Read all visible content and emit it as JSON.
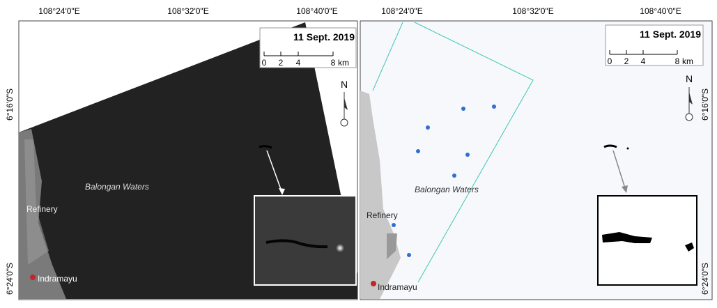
{
  "panels": [
    {
      "lon_labels": [
        "108°24'0\"E",
        "108°32'0\"E",
        "108°40'0\"E"
      ],
      "lat_labels": [
        "6°16'0\"S",
        "6°24'0\"S"
      ],
      "date": "11 Sept. 2019",
      "scale": [
        "0",
        "2",
        "4",
        "8"
      ],
      "scale_unit": "km",
      "north": "N",
      "waters": "Balongan Waters",
      "refinery": "Refinery",
      "town": "Indramayu"
    },
    {
      "lon_labels": [
        "108°24'0\"E",
        "108°32'0\"E",
        "108°40'0\"E"
      ],
      "lat_labels": [
        "6°16'0\"S",
        "6°24'0\"S"
      ],
      "date": "11 Sept. 2019",
      "scale": [
        "0",
        "2",
        "4",
        "8"
      ],
      "scale_unit": "km",
      "north": "N",
      "waters": "Balongan Waters",
      "refinery": "Refinery",
      "town": "Indramayu"
    }
  ]
}
